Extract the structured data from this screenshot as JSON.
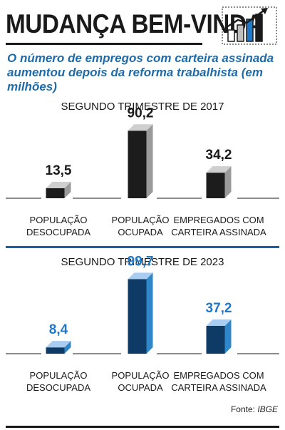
{
  "header": {
    "title": "MUDANÇA BEM-VINDA",
    "subtitle": "O número de empregos com carteira assinada aumentou depois da reforma trabalhista (em milhões)"
  },
  "chart_data": [
    {
      "type": "bar",
      "title": "SEGUNDO TRIMESTRE DE 2017",
      "categories": [
        "POPULAÇÃO DESOCUPADA",
        "POPULAÇÃO OCUPADA",
        "EMPREGADOS COM CARTEIRA ASSINADA"
      ],
      "category_lines": [
        [
          "POPULAÇÃO",
          "DESOCUPADA"
        ],
        [
          "POPULAÇÃO",
          "OCUPADA"
        ],
        [
          "EMPREGADOS COM",
          "CARTEIRA ASSINADA"
        ]
      ],
      "values": [
        13.5,
        90.2,
        34.2
      ],
      "value_labels": [
        "13,5",
        "90,2",
        "34,2"
      ],
      "colors": {
        "front": "#1c1c1c",
        "side": "#9a9a9a",
        "top": "#cfcfcf",
        "label": "#1a1a1a"
      }
    },
    {
      "type": "bar",
      "title": "SEGUNDO TRIMESTRE DE 2023",
      "categories": [
        "POPULAÇÃO DESOCUPADA",
        "POPULAÇÃO OCUPADA",
        "EMPREGADOS COM CARTEIRA ASSINADA"
      ],
      "category_lines": [
        [
          "POPULAÇÃO",
          "DESOCUPADA"
        ],
        [
          "POPULAÇÃO",
          "OCUPADA"
        ],
        [
          "EMPREGADOS COM",
          "CARTEIRA ASSINADA"
        ]
      ],
      "values": [
        8.4,
        99.7,
        37.2
      ],
      "value_labels": [
        "8,4",
        "99,7",
        "37,2"
      ],
      "colors": {
        "front": "#0d3b66",
        "side": "#2f86c8",
        "top": "#a9cdf0",
        "label": "#1f78c8"
      }
    }
  ],
  "footer": {
    "source_prefix": "Fonte: ",
    "source_name": "IBGE"
  },
  "colors": {
    "accent": "#1f6aa8",
    "rule_blue": "#1a5ea8",
    "baseline": "#1a1a1a"
  },
  "icons": [
    "rising-bar-chart-icon"
  ]
}
